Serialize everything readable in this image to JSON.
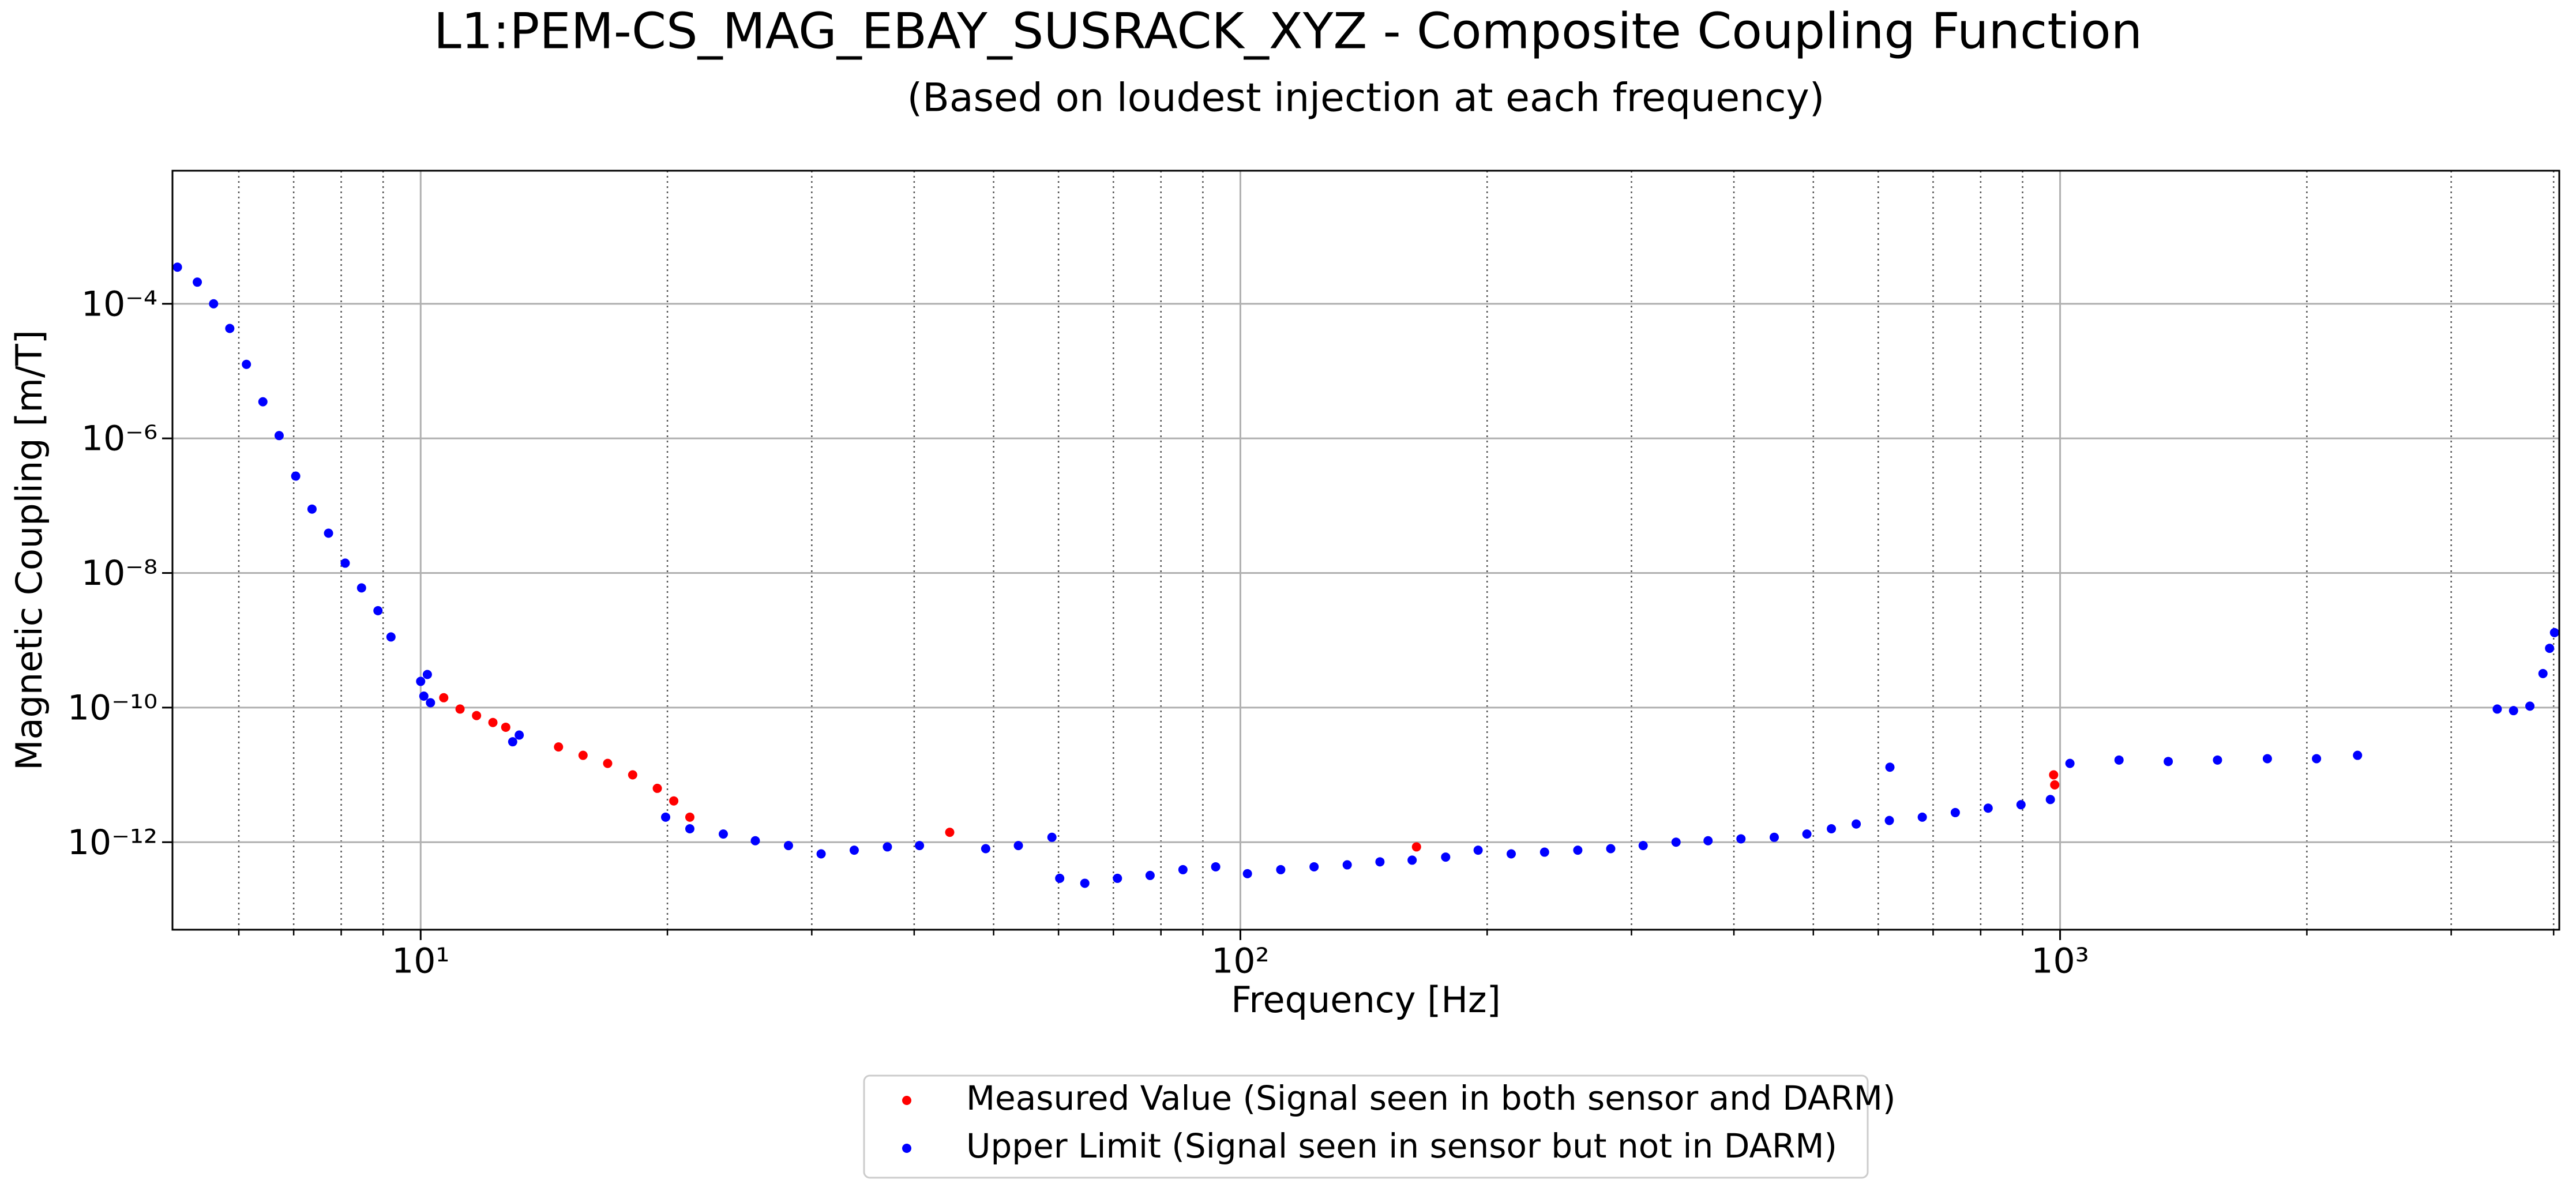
{
  "chart_data": {
    "type": "scatter",
    "title": "L1:PEM-CS_MAG_EBAY_SUSRACK_XYZ - Composite Coupling Function",
    "subtitle": "(Based on loudest injection at each frequency)",
    "xlabel": "Frequency [Hz]",
    "ylabel": "Magnetic Coupling [m/T]",
    "xscale": "log",
    "yscale": "log",
    "xlim": [
      4.98,
      4064
    ],
    "ylim": [
      5e-14,
      0.0095
    ],
    "xticks": [
      {
        "value": 10,
        "label": "10¹"
      },
      {
        "value": 100,
        "label": "10²"
      },
      {
        "value": 1000,
        "label": "10³"
      }
    ],
    "xminorticks": [
      6,
      7,
      8,
      9,
      20,
      30,
      40,
      50,
      60,
      70,
      80,
      90,
      200,
      300,
      400,
      500,
      600,
      700,
      800,
      900,
      2000,
      3000,
      4000
    ],
    "yticks": [
      {
        "value": 1e-12,
        "label": "10⁻¹²"
      },
      {
        "value": 1e-10,
        "label": "10⁻¹⁰"
      },
      {
        "value": 1e-08,
        "label": "10⁻⁸"
      },
      {
        "value": 1e-06,
        "label": "10⁻⁶"
      },
      {
        "value": 0.0001,
        "label": "10⁻⁴"
      }
    ],
    "grid": true,
    "legend": "below",
    "series": [
      {
        "name": "Measured Value (Signal seen in both sensor and DARM)",
        "color": "#ff0000",
        "x": [
          10.67,
          11.17,
          11.7,
          12.25,
          12.7,
          14.73,
          15.78,
          16.91,
          18.14,
          19.44,
          20.36,
          21.3,
          44.2,
          164,
          982,
          985
        ],
        "values": [
          1.4e-10,
          9.5e-11,
          7.6e-11,
          6e-11,
          5.1e-11,
          2.6e-11,
          1.95e-11,
          1.48e-11,
          1e-11,
          6.3e-12,
          4.1e-12,
          2.35e-12,
          1.4e-12,
          8.5e-13,
          1e-11,
          7.1e-12
        ]
      },
      {
        "name": "Upper Limit (Signal seen in sensor but not in DARM)",
        "color": "#0000ff",
        "x": [
          5.05,
          5.34,
          5.59,
          5.85,
          6.13,
          6.42,
          6.72,
          7.04,
          7.37,
          7.72,
          8.09,
          8.47,
          8.87,
          9.2,
          10.0,
          10.19,
          10.28,
          10.09,
          12.95,
          13.19,
          19.9,
          21.3,
          23.4,
          25.6,
          28.1,
          30.8,
          33.8,
          37.1,
          40.6,
          48.9,
          53.6,
          58.9,
          60.2,
          64.6,
          70.8,
          77.6,
          85.1,
          93.3,
          102,
          112,
          123,
          135,
          148,
          162,
          178,
          195,
          214,
          235,
          258,
          283,
          310,
          340,
          372,
          408,
          448,
          491,
          526,
          564,
          619,
          620,
          679,
          745,
          817,
          896,
          973,
          1028,
          1180,
          1355,
          1556,
          1790,
          2055,
          2306,
          3414,
          3574,
          3742,
          3882,
          3955,
          4010
        ],
        "values": [
          0.00035,
          0.00021,
          0.0001,
          4.3e-05,
          1.26e-05,
          3.5e-06,
          1.1e-06,
          2.75e-07,
          8.9e-08,
          3.9e-08,
          1.4e-08,
          6e-09,
          2.75e-09,
          1.12e-09,
          2.45e-10,
          3.1e-10,
          1.18e-10,
          1.48e-10,
          3.1e-11,
          3.9e-11,
          2.35e-12,
          1.58e-12,
          1.32e-12,
          1.05e-12,
          8.9e-13,
          6.7e-13,
          7.6e-13,
          8.5e-13,
          8.9e-13,
          8e-13,
          8.9e-13,
          1.18e-12,
          2.9e-13,
          2.45e-13,
          2.9e-13,
          3.2e-13,
          3.9e-13,
          4.3e-13,
          3.4e-13,
          3.9e-13,
          4.3e-13,
          4.6e-13,
          5.1e-13,
          5.4e-13,
          6e-13,
          7.6e-13,
          6.7e-13,
          7.1e-13,
          7.6e-13,
          8e-13,
          8.9e-13,
          1e-12,
          1.05e-12,
          1.12e-12,
          1.18e-12,
          1.32e-12,
          1.58e-12,
          1.86e-12,
          2.1e-12,
          1.3e-11,
          2.35e-12,
          2.75e-12,
          3.2e-12,
          3.6e-12,
          4.3e-12,
          1.48e-11,
          1.66e-11,
          1.58e-11,
          1.66e-11,
          1.74e-11,
          1.74e-11,
          1.95e-11,
          9.5e-11,
          9e-11,
          1.05e-10,
          3.2e-10,
          7.6e-10,
          1.3e-09
        ]
      }
    ]
  }
}
